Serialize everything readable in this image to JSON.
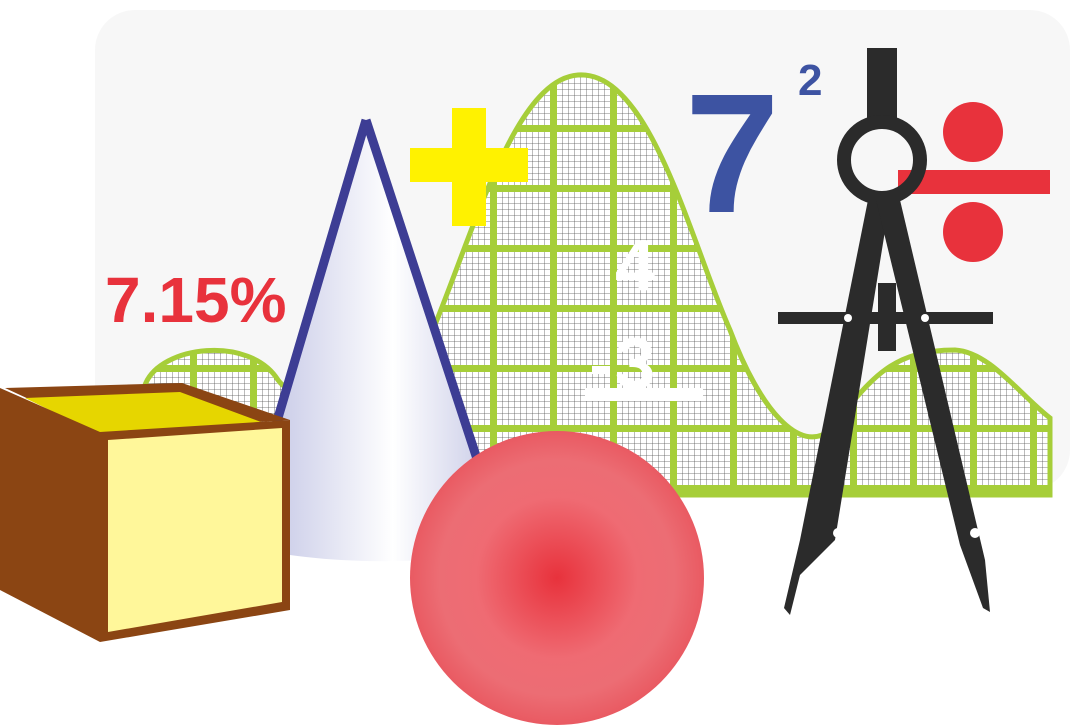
{
  "labels": {
    "percent": "7.15%",
    "base": "7",
    "exponent": "2",
    "numerator": "4",
    "denominator": "3",
    "plus_sign": "+",
    "divide_sign": "÷"
  },
  "colors": {
    "background_panel": "#f7f7f7",
    "percent_red": "#e8323c",
    "seven_blue": "#3d53a2",
    "plus_yellow": "#fff200",
    "divide_red": "#e8323c",
    "grid_green": "#a6ce39",
    "grid_fine": "#555555",
    "fraction_white": "#ffffff",
    "cube_brown": "#8b4513",
    "cube_top": "#e6d600",
    "cube_front": "#fff79a",
    "cone_outline": "#3d3d94",
    "sphere_red": "#e8323c",
    "compass_black": "#2b2b2b"
  },
  "icons": [
    "cube-icon",
    "cone-icon",
    "sphere-icon",
    "bell-curve-grid-icon",
    "compass-icon",
    "plus-icon",
    "divide-icon"
  ]
}
